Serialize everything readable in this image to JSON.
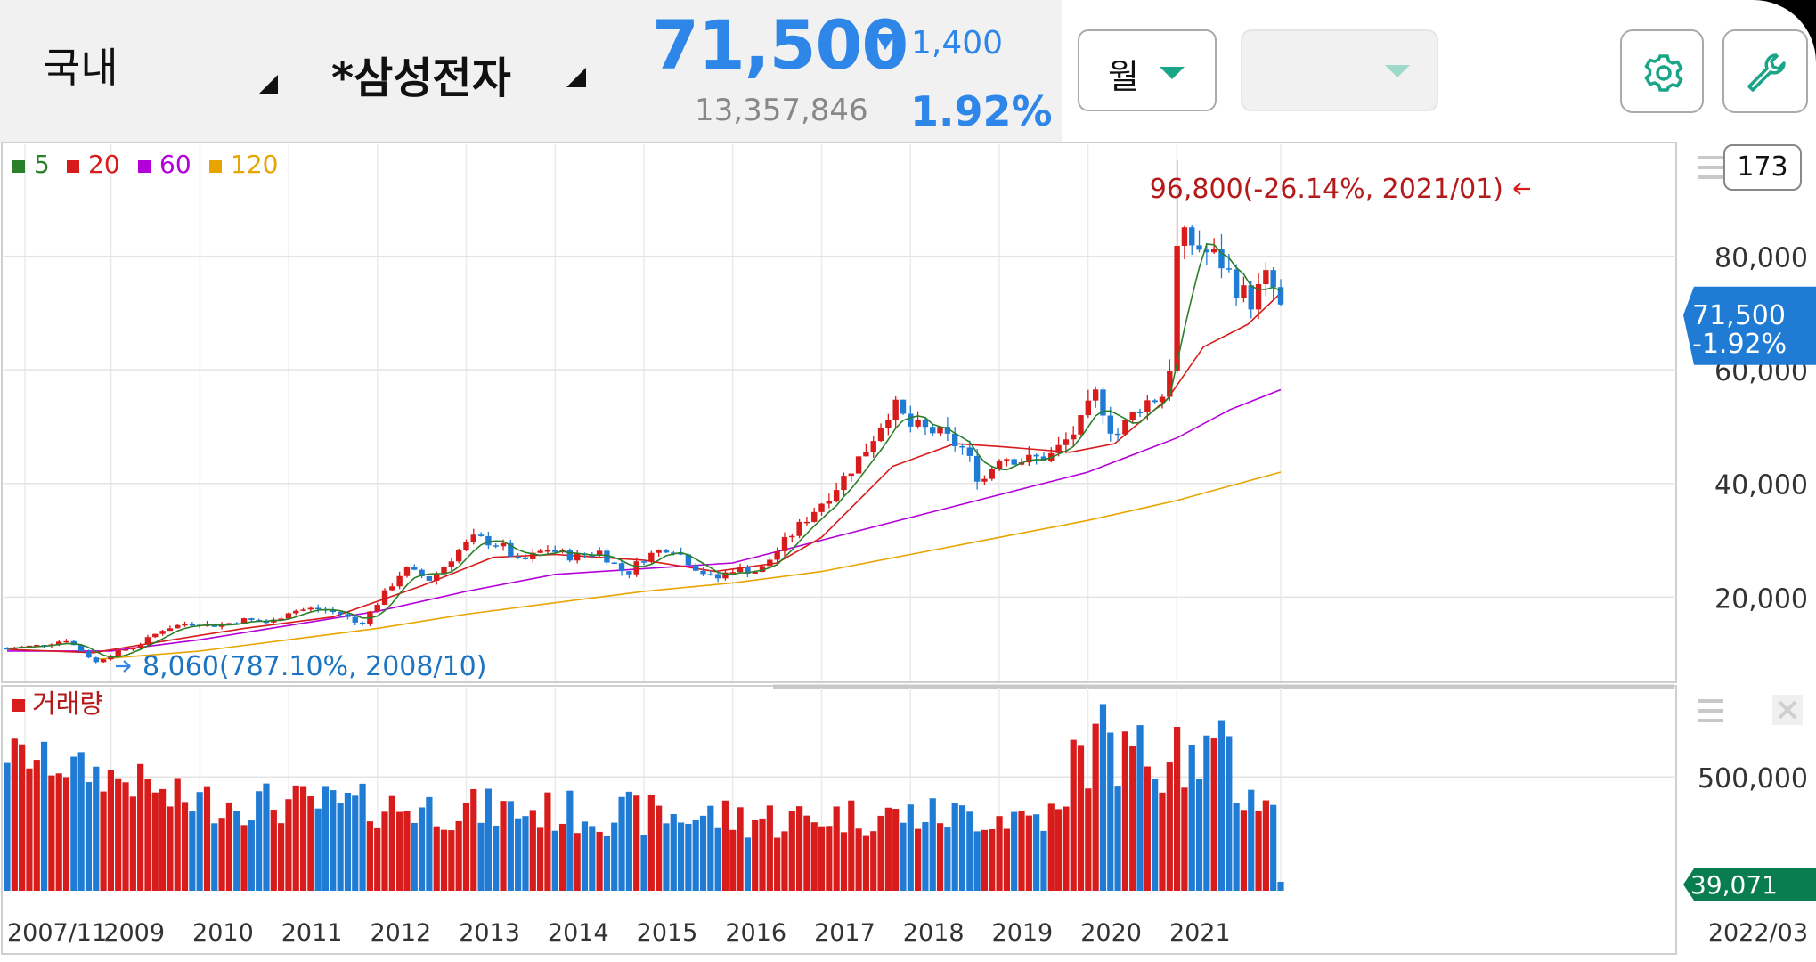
{
  "header": {
    "market": "국내",
    "stock_name": "*삼성전자",
    "price": "71,500",
    "change": "1,400",
    "volume": "13,357,846",
    "change_pct": "1.92%",
    "period": "월"
  },
  "colors": {
    "up": "#d81b1b",
    "down": "#1f7bd3",
    "accent": "#2e86e8",
    "ma5": "#2a7f2a",
    "ma20": "#d81b1b",
    "ma60": "#b400d8",
    "ma120": "#e8a500"
  },
  "icons": [
    "gear-icon",
    "wrench-icon",
    "menu-icon",
    "close-icon",
    "chevron-down-icon"
  ],
  "count_badge": "173",
  "chart_data": {
    "type": "candlestick",
    "legend": [
      {
        "name": "5",
        "color": "#2a7f2a"
      },
      {
        "name": "20",
        "color": "#d81b1b"
      },
      {
        "name": "60",
        "color": "#b400d8"
      },
      {
        "name": "120",
        "color": "#e8a500"
      }
    ],
    "y_ticks": [
      "20,000",
      "40,000",
      "60,000",
      "80,000"
    ],
    "y_tick_values": [
      20000,
      40000,
      60000,
      80000
    ],
    "ylim": [
      5000,
      100000
    ],
    "x_labels": [
      "2007/11",
      "2009",
      "2010",
      "2011",
      "2012",
      "2013",
      "2014",
      "2015",
      "2016",
      "2017",
      "2018",
      "2019",
      "2020",
      "2021",
      "2022/03"
    ],
    "x_label_years": [
      2007.83,
      2009,
      2010,
      2011,
      2012,
      2013,
      2014,
      2015,
      2016,
      2017,
      2018,
      2019,
      2020,
      2021,
      2022.17
    ],
    "annotations": [
      {
        "text": "96,800(-26.14%, 2021/01)",
        "value": 96800,
        "date": "2021/01"
      },
      {
        "text": "8,060(787.10%, 2008/10)",
        "value": 8060,
        "date": "2008/10"
      }
    ],
    "current_price_label": "71,500",
    "current_change_label": "-1.92%",
    "price_points": [
      [
        2007.83,
        11000
      ],
      [
        2008.2,
        11500
      ],
      [
        2008.5,
        12500
      ],
      [
        2008.83,
        8500
      ],
      [
        2009.0,
        10000
      ],
      [
        2009.3,
        11500
      ],
      [
        2009.6,
        14500
      ],
      [
        2009.9,
        15500
      ],
      [
        2010.2,
        15000
      ],
      [
        2010.5,
        16000
      ],
      [
        2010.8,
        15500
      ],
      [
        2011.0,
        17500
      ],
      [
        2011.3,
        18000
      ],
      [
        2011.6,
        17000
      ],
      [
        2011.8,
        15000
      ],
      [
        2012.0,
        19000
      ],
      [
        2012.3,
        25000
      ],
      [
        2012.6,
        23000
      ],
      [
        2012.9,
        28000
      ],
      [
        2013.1,
        30500
      ],
      [
        2013.4,
        29000
      ],
      [
        2013.6,
        26000
      ],
      [
        2013.9,
        28500
      ],
      [
        2014.2,
        27000
      ],
      [
        2014.5,
        28000
      ],
      [
        2014.8,
        24000
      ],
      [
        2015.0,
        27000
      ],
      [
        2015.3,
        29000
      ],
      [
        2015.6,
        25000
      ],
      [
        2015.8,
        23000
      ],
      [
        2016.0,
        25000
      ],
      [
        2016.3,
        24500
      ],
      [
        2016.6,
        30000
      ],
      [
        2016.9,
        35000
      ],
      [
        2017.2,
        40000
      ],
      [
        2017.5,
        46000
      ],
      [
        2017.8,
        54000
      ],
      [
        2018.0,
        50000
      ],
      [
        2018.3,
        49000
      ],
      [
        2018.6,
        46000
      ],
      [
        2018.8,
        40000
      ],
      [
        2019.0,
        45000
      ],
      [
        2019.3,
        44000
      ],
      [
        2019.6,
        45000
      ],
      [
        2019.9,
        50000
      ],
      [
        2020.1,
        56000
      ],
      [
        2020.3,
        48000
      ],
      [
        2020.6,
        54000
      ],
      [
        2020.9,
        56000
      ],
      [
        2021.0,
        81000
      ],
      [
        2021.1,
        83000
      ],
      [
        2021.3,
        81000
      ],
      [
        2021.5,
        79000
      ],
      [
        2021.7,
        74000
      ],
      [
        2021.85,
        72000
      ],
      [
        2022.0,
        76000
      ],
      [
        2022.1,
        74000
      ],
      [
        2022.17,
        71500
      ]
    ],
    "ma20_points": [
      [
        2007.83,
        10800
      ],
      [
        2008.8,
        10200
      ],
      [
        2009.5,
        12000
      ],
      [
        2010.5,
        14500
      ],
      [
        2011.5,
        16500
      ],
      [
        2012.5,
        22000
      ],
      [
        2013.3,
        27000
      ],
      [
        2014.0,
        27500
      ],
      [
        2015.0,
        26500
      ],
      [
        2015.8,
        24500
      ],
      [
        2016.5,
        26000
      ],
      [
        2017.0,
        30500
      ],
      [
        2017.8,
        43000
      ],
      [
        2018.5,
        47000
      ],
      [
        2019.0,
        46500
      ],
      [
        2019.8,
        45500
      ],
      [
        2020.3,
        47000
      ],
      [
        2020.9,
        55000
      ],
      [
        2021.3,
        64000
      ],
      [
        2021.8,
        68000
      ],
      [
        2022.17,
        73500
      ]
    ],
    "ma60_points": [
      [
        2007.83,
        10500
      ],
      [
        2009.0,
        10500
      ],
      [
        2010.0,
        12500
      ],
      [
        2011.0,
        15000
      ],
      [
        2012.0,
        17500
      ],
      [
        2013.0,
        21000
      ],
      [
        2014.0,
        24000
      ],
      [
        2015.0,
        25000
      ],
      [
        2016.0,
        26000
      ],
      [
        2017.0,
        30000
      ],
      [
        2018.0,
        34000
      ],
      [
        2019.0,
        38000
      ],
      [
        2020.0,
        42000
      ],
      [
        2021.0,
        48000
      ],
      [
        2021.6,
        53000
      ],
      [
        2022.17,
        56500
      ]
    ],
    "ma120_points": [
      [
        2008.8,
        9000
      ],
      [
        2010.0,
        10500
      ],
      [
        2011.0,
        12500
      ],
      [
        2012.0,
        14500
      ],
      [
        2013.0,
        17000
      ],
      [
        2014.0,
        19000
      ],
      [
        2015.0,
        21000
      ],
      [
        2016.0,
        22500
      ],
      [
        2017.0,
        24500
      ],
      [
        2018.0,
        27500
      ],
      [
        2019.0,
        30500
      ],
      [
        2020.0,
        33500
      ],
      [
        2021.0,
        37000
      ],
      [
        2022.17,
        42000
      ]
    ],
    "volume_panel": {
      "label": "거래량",
      "y_ticks": [
        "500,000"
      ],
      "y_tick_values": [
        500000
      ],
      "current_value_label": "39,071",
      "current_value": 39071,
      "ylim": [
        0,
        900000
      ]
    }
  }
}
